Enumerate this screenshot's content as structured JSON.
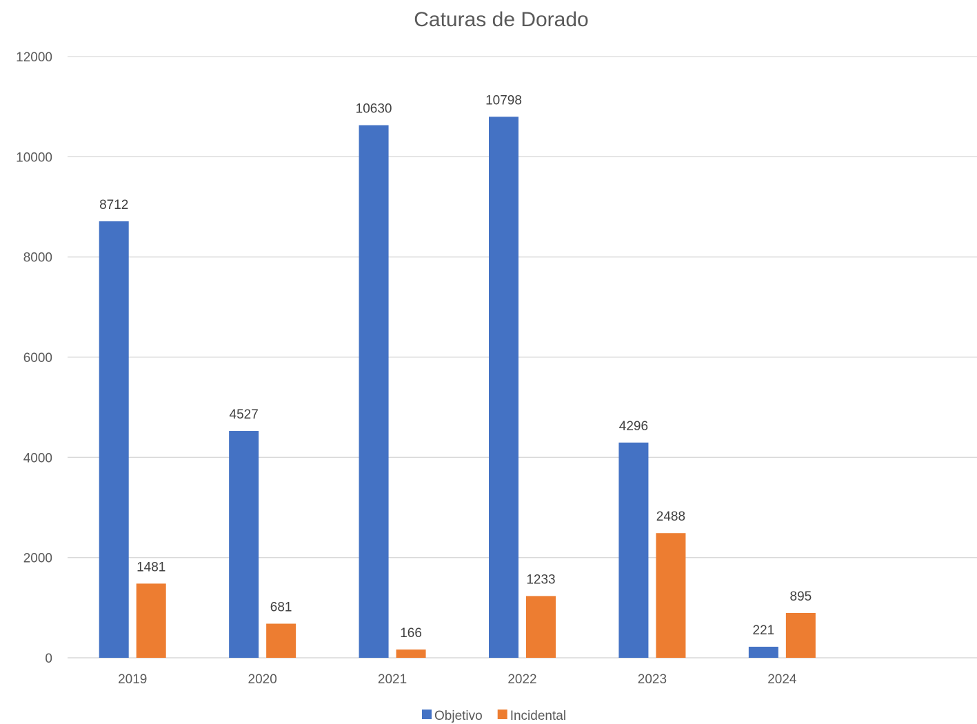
{
  "chart_data": {
    "type": "bar",
    "title": "Caturas de Dorado",
    "categories": [
      "2019",
      "2020",
      "2021",
      "2022",
      "2023",
      "2024",
      ""
    ],
    "series": [
      {
        "name": "Objetivo",
        "color": "#4472C4",
        "values": [
          8712,
          4527,
          10630,
          10798,
          4296,
          221,
          null
        ]
      },
      {
        "name": "Incidental",
        "color": "#ED7D31",
        "values": [
          1481,
          681,
          166,
          1233,
          2488,
          895,
          null
        ]
      }
    ],
    "ylim": [
      0,
      12000
    ],
    "yticks": [
      0,
      2000,
      4000,
      6000,
      8000,
      10000,
      12000
    ],
    "grid": true,
    "legend": "bottom",
    "data_labels": true
  }
}
